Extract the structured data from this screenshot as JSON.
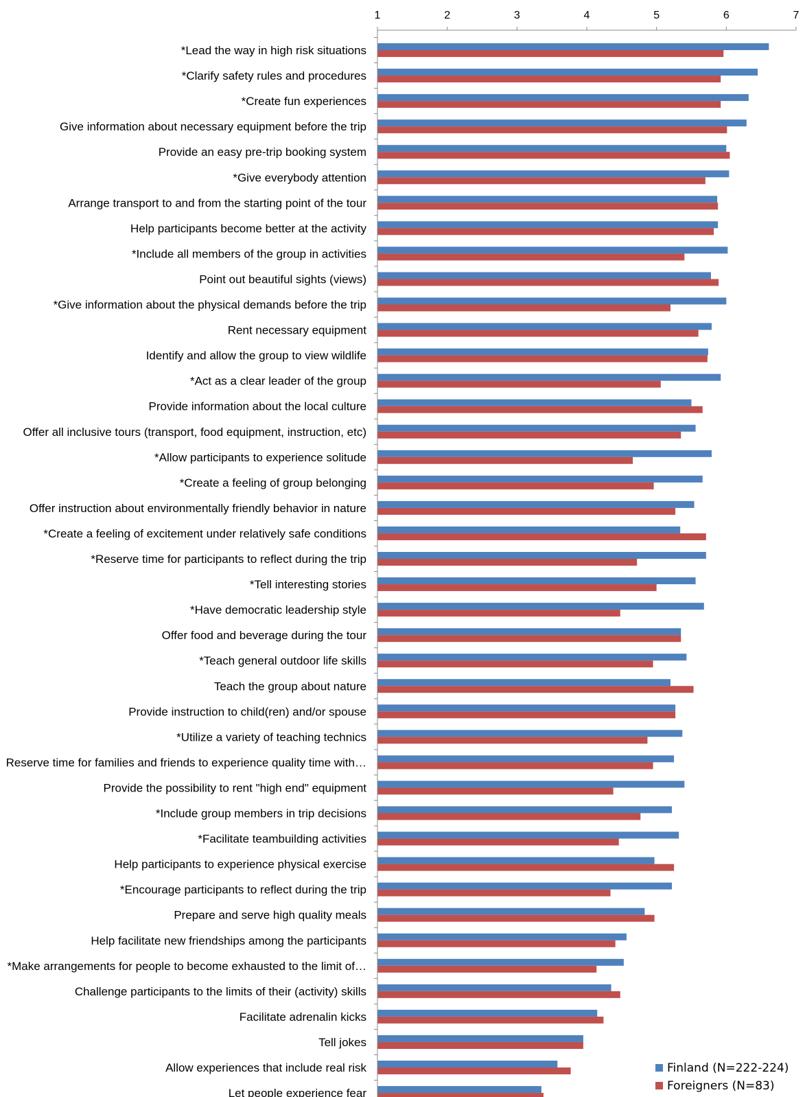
{
  "chart_data": {
    "type": "bar",
    "orientation": "horizontal",
    "xlim": [
      1,
      7
    ],
    "x_ticks": [
      "1",
      "2",
      "3",
      "4",
      "5",
      "6",
      "7"
    ],
    "x_axis_position": "top",
    "grid": false,
    "legend_position": "bottom-right",
    "categories": [
      "*Lead the way in high risk situations",
      "*Clarify safety rules and procedures",
      "*Create fun experiences",
      "Give information about necessary equipment before the trip",
      "Provide an easy pre-trip booking system",
      "*Give everybody attention",
      "Arrange transport to and from the starting point of the tour",
      "Help participants become better at the activity",
      "*Include all members of the group in activities",
      "Point out beautiful sights (views)",
      "*Give information about the physical demands before the trip",
      "Rent necessary equipment",
      "Identify and allow the group to view wildlife",
      "*Act as a clear leader of the group",
      "Provide information about the local culture",
      "Offer all inclusive tours (transport, food equipment, instruction, etc)",
      "*Allow participants to experience solitude",
      "*Create a feeling of group belonging",
      "Offer instruction about environmentally friendly behavior in nature",
      "*Create a feeling of excitement under relatively safe conditions",
      "*Reserve time for participants to reflect during the trip",
      "*Tell interesting stories",
      "*Have democratic leadership style",
      "Offer food and beverage during the tour",
      "*Teach general outdoor life skills",
      "Teach the group about nature",
      "Provide instruction to child(ren) and/or spouse",
      "*Utilize a variety of teaching technics",
      "Reserve time for families and friends to experience quality time with…",
      "Provide the possibility to rent \"high end\" equipment",
      "*Include group members in trip decisions",
      "*Facilitate teambuilding activities",
      "Help participants to experience physical exercise",
      "*Encourage participants to reflect during the trip",
      "Prepare and serve high quality meals",
      "Help facilitate new friendships among the participants",
      "*Make arrangements for people to become exhausted to the limit of…",
      "Challenge participants to the limits of their (activity) skills",
      "Facilitate adrenalin kicks",
      "Tell jokes",
      "Allow experiences that include real risk",
      "Let people experience fear"
    ],
    "series": [
      {
        "name": "Finland (N=222-224)",
        "color": "#4f81bd",
        "values": [
          6.61,
          6.45,
          6.32,
          6.29,
          6.0,
          6.04,
          5.87,
          5.88,
          6.02,
          5.78,
          6.0,
          5.79,
          5.74,
          5.92,
          5.5,
          5.56,
          5.79,
          5.66,
          5.54,
          5.34,
          5.71,
          5.56,
          5.68,
          5.35,
          5.43,
          5.2,
          5.27,
          5.37,
          5.25,
          5.4,
          5.22,
          5.32,
          4.97,
          5.22,
          4.83,
          4.57,
          4.53,
          4.35,
          4.15,
          3.95,
          3.58,
          3.35
        ]
      },
      {
        "name": "Foreigners (N=83)",
        "color": "#c0504d",
        "values": [
          5.96,
          5.92,
          5.92,
          6.01,
          6.05,
          5.7,
          5.88,
          5.82,
          5.4,
          5.89,
          5.2,
          5.6,
          5.73,
          5.06,
          5.66,
          5.35,
          4.66,
          4.96,
          5.27,
          5.71,
          4.72,
          5.0,
          4.48,
          5.35,
          4.95,
          5.53,
          5.27,
          4.87,
          4.95,
          4.38,
          4.77,
          4.46,
          5.25,
          4.34,
          4.97,
          4.41,
          4.14,
          4.48,
          4.24,
          3.95,
          3.77,
          3.38
        ]
      }
    ]
  }
}
